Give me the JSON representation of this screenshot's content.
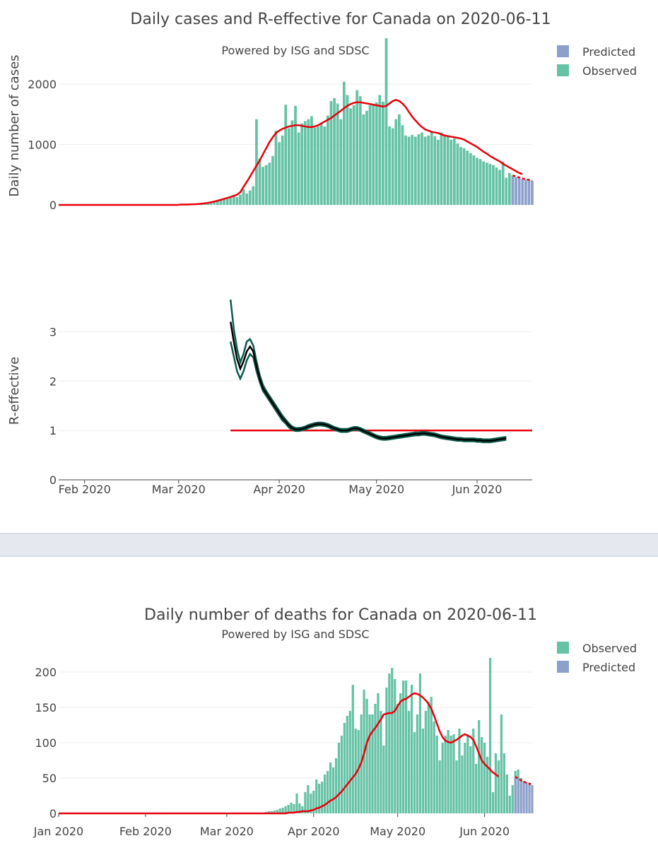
{
  "colors": {
    "observed": "#66c2a5",
    "predicted": "#8da0cb",
    "smooth": "#e8000b",
    "r_band": "#0a5b4c",
    "r_median": "#000000",
    "grid": "#eeeeee",
    "separator": "#e5e8ee"
  },
  "chart_data": [
    {
      "id": "cases",
      "type": "bar",
      "title": "Daily cases and R-effective for Canada on 2020-06-11",
      "subtitle": "Powered by ISG and SDSC",
      "ylabel": "Daily number of cases",
      "ylim": [
        0,
        2750
      ],
      "yticks": [
        0,
        1000,
        2000
      ],
      "x_start": "2020-01-24",
      "x_end": "2020-06-18",
      "x_ticks": [
        {
          "label": "Feb 2020",
          "date": "2020-02-01"
        },
        {
          "label": "Mar 2020",
          "date": "2020-03-01"
        },
        {
          "label": "Apr 2020",
          "date": "2020-04-01"
        },
        {
          "label": "May 2020",
          "date": "2020-05-01"
        },
        {
          "label": "Jun 2020",
          "date": "2020-06-01"
        }
      ],
      "legend": [
        {
          "label": "Predicted",
          "series": "predicted"
        },
        {
          "label": "Observed",
          "series": "observed"
        }
      ],
      "observed": {
        "start": "2020-03-01",
        "values": [
          5,
          10,
          12,
          15,
          18,
          20,
          25,
          30,
          35,
          45,
          55,
          70,
          80,
          95,
          110,
          120,
          140,
          150,
          130,
          170,
          260,
          190,
          240,
          310,
          1420,
          770,
          630,
          660,
          700,
          810,
          1230,
          1040,
          1150,
          1660,
          1270,
          1400,
          1640,
          1200,
          1350,
          1390,
          1420,
          1470,
          1280,
          1300,
          1360,
          1300,
          1480,
          1720,
          1770,
          1680,
          1420,
          2040,
          1820,
          1600,
          1650,
          1900,
          1800,
          1500,
          1560,
          1650,
          1650,
          1700,
          1820,
          1710,
          2760,
          1300,
          1270,
          1420,
          1500,
          1320,
          1150,
          1130,
          1160,
          1130,
          1170,
          1200,
          1130,
          1150,
          1200,
          1140,
          1080,
          1200,
          1160,
          1130,
          1080,
          1100,
          1020,
          960,
          940,
          900,
          860,
          820,
          780,
          760,
          720,
          700,
          680,
          660,
          620,
          580,
          720,
          450,
          530,
          490
        ]
      },
      "predicted": {
        "start": "2020-06-12",
        "values": [
          480,
          460,
          440,
          430,
          420,
          410,
          400
        ]
      },
      "smooth_observed": {
        "start": "2020-03-01",
        "values": [
          5,
          6,
          7,
          8,
          10,
          12,
          15,
          20,
          26,
          34,
          44,
          56,
          70,
          85,
          100,
          116,
          132,
          150,
          170,
          210,
          300,
          380,
          470,
          560,
          650,
          740,
          840,
          940,
          1040,
          1120,
          1190,
          1230,
          1260,
          1280,
          1300,
          1310,
          1320,
          1320,
          1310,
          1300,
          1290,
          1290,
          1300,
          1320,
          1350,
          1380,
          1410,
          1440,
          1480,
          1520,
          1560,
          1600,
          1640,
          1670,
          1690,
          1700,
          1700,
          1690,
          1680,
          1670,
          1660,
          1650,
          1640,
          1630,
          1640,
          1680,
          1720,
          1740,
          1720,
          1680,
          1620,
          1540,
          1460,
          1400,
          1340,
          1290,
          1250,
          1230,
          1210,
          1200,
          1190,
          1170,
          1150,
          1140,
          1130,
          1120,
          1110,
          1100,
          1080,
          1050,
          1020,
          990,
          960,
          920,
          880,
          850,
          810,
          780,
          750,
          720,
          680,
          650,
          620,
          590,
          560,
          530,
          510
        ]
      },
      "smooth_predicted": {
        "start": "2020-06-12",
        "values": [
          490,
          470,
          455,
          440,
          425,
          415,
          405
        ]
      }
    },
    {
      "id": "r_effective",
      "type": "line",
      "ylabel": "R-effective",
      "ylim": [
        0,
        3.65
      ],
      "yticks": [
        0,
        1,
        2,
        3
      ],
      "x_start": "2020-01-24",
      "x_end": "2020-06-18",
      "x_ticks": [
        {
          "label": "Feb 2020",
          "date": "2020-02-01"
        },
        {
          "label": "Mar 2020",
          "date": "2020-03-01"
        },
        {
          "label": "Apr 2020",
          "date": "2020-04-01"
        },
        {
          "label": "May 2020",
          "date": "2020-05-01"
        },
        {
          "label": "Jun 2020",
          "date": "2020-06-01"
        }
      ],
      "start": "2020-03-17",
      "median": [
        3.2,
        2.8,
        2.45,
        2.25,
        2.4,
        2.6,
        2.7,
        2.6,
        2.3,
        2.05,
        1.85,
        1.75,
        1.65,
        1.55,
        1.45,
        1.35,
        1.25,
        1.18,
        1.1,
        1.05,
        1.02,
        1.02,
        1.03,
        1.05,
        1.08,
        1.1,
        1.12,
        1.13,
        1.13,
        1.12,
        1.1,
        1.07,
        1.04,
        1.02,
        1.0,
        1.0,
        1.0,
        1.02,
        1.04,
        1.04,
        1.02,
        0.99,
        0.96,
        0.93,
        0.9,
        0.87,
        0.85,
        0.84,
        0.84,
        0.85,
        0.86,
        0.87,
        0.88,
        0.89,
        0.9,
        0.91,
        0.92,
        0.93,
        0.93,
        0.94,
        0.94,
        0.93,
        0.92,
        0.91,
        0.89,
        0.87,
        0.86,
        0.85,
        0.84,
        0.83,
        0.82,
        0.82,
        0.81,
        0.81,
        0.81,
        0.81,
        0.8,
        0.8,
        0.79,
        0.79,
        0.79,
        0.8,
        0.81,
        0.82,
        0.83,
        0.84
      ],
      "upper": [
        3.65,
        3.05,
        2.65,
        2.38,
        2.55,
        2.8,
        2.85,
        2.72,
        2.4,
        2.12,
        1.92,
        1.8,
        1.7,
        1.6,
        1.5,
        1.4,
        1.3,
        1.22,
        1.14,
        1.08,
        1.05,
        1.05,
        1.06,
        1.08,
        1.11,
        1.13,
        1.15,
        1.16,
        1.16,
        1.15,
        1.13,
        1.1,
        1.07,
        1.05,
        1.03,
        1.03,
        1.03,
        1.05,
        1.07,
        1.07,
        1.05,
        1.02,
        0.99,
        0.96,
        0.93,
        0.9,
        0.88,
        0.87,
        0.87,
        0.88,
        0.89,
        0.9,
        0.91,
        0.92,
        0.93,
        0.94,
        0.95,
        0.96,
        0.96,
        0.97,
        0.97,
        0.96,
        0.95,
        0.94,
        0.92,
        0.9,
        0.89,
        0.88,
        0.87,
        0.86,
        0.85,
        0.85,
        0.84,
        0.84,
        0.84,
        0.84,
        0.83,
        0.83,
        0.82,
        0.82,
        0.82,
        0.83,
        0.84,
        0.85,
        0.86,
        0.87
      ],
      "lower": [
        2.8,
        2.5,
        2.2,
        2.05,
        2.2,
        2.42,
        2.55,
        2.48,
        2.2,
        1.98,
        1.8,
        1.7,
        1.6,
        1.5,
        1.4,
        1.3,
        1.2,
        1.14,
        1.06,
        1.01,
        0.99,
        0.99,
        1.0,
        1.02,
        1.05,
        1.07,
        1.09,
        1.1,
        1.1,
        1.09,
        1.07,
        1.04,
        1.01,
        0.99,
        0.97,
        0.97,
        0.97,
        0.99,
        1.01,
        1.01,
        0.99,
        0.96,
        0.93,
        0.9,
        0.87,
        0.84,
        0.82,
        0.81,
        0.81,
        0.82,
        0.83,
        0.84,
        0.85,
        0.86,
        0.87,
        0.88,
        0.89,
        0.9,
        0.9,
        0.91,
        0.91,
        0.9,
        0.89,
        0.88,
        0.86,
        0.84,
        0.83,
        0.82,
        0.81,
        0.8,
        0.79,
        0.79,
        0.78,
        0.78,
        0.78,
        0.78,
        0.77,
        0.77,
        0.76,
        0.76,
        0.76,
        0.77,
        0.78,
        0.79,
        0.8,
        0.81
      ],
      "reference_line": {
        "value": 1,
        "start": "2020-03-17",
        "end": "2020-06-18"
      }
    },
    {
      "id": "deaths",
      "type": "bar",
      "title": "Daily number of deaths for Canada on 2020-06-11",
      "subtitle": "Powered by ISG and SDSC",
      "ylim": [
        0,
        230
      ],
      "yticks": [
        0,
        50,
        100,
        150,
        200
      ],
      "x_start": "2020-01-01",
      "x_end": "2020-06-18",
      "x_ticks": [
        {
          "label": "Jan 2020",
          "date": "2020-01-01"
        },
        {
          "label": "Feb 2020",
          "date": "2020-02-01"
        },
        {
          "label": "Mar 2020",
          "date": "2020-03-01"
        },
        {
          "label": "Apr 2020",
          "date": "2020-04-01"
        },
        {
          "label": "May 2020",
          "date": "2020-05-01"
        },
        {
          "label": "Jun 2020",
          "date": "2020-06-01"
        }
      ],
      "legend": [
        {
          "label": "Observed",
          "series": "observed"
        },
        {
          "label": "Predicted",
          "series": "predicted"
        }
      ],
      "observed": {
        "start": "2020-03-09",
        "values": [
          1,
          0,
          1,
          1,
          1,
          1,
          2,
          3,
          3,
          4,
          5,
          7,
          8,
          10,
          12,
          15,
          13,
          28,
          14,
          10,
          30,
          40,
          28,
          32,
          48,
          42,
          45,
          55,
          60,
          72,
          65,
          78,
          100,
          110,
          128,
          138,
          145,
          182,
          120,
          118,
          140,
          175,
          162,
          140,
          140,
          155,
          170,
          145,
          96,
          178,
          198,
          206,
          190,
          155,
          170,
          188,
          188,
          145,
          182,
          115,
          140,
          198,
          120,
          145,
          158,
          165,
          130,
          110,
          75,
          100,
          110,
          118,
          110,
          112,
          75,
          120,
          82,
          100,
          112,
          95,
          120,
          70,
          132,
          108,
          100,
          80,
          220,
          30,
          85,
          75,
          140,
          85,
          55,
          25,
          40,
          60,
          62,
          50
        ]
      },
      "predicted": {
        "start": "2020-06-12",
        "values": [
          52,
          50,
          48,
          46,
          44,
          42,
          40
        ]
      },
      "smooth_observed": {
        "start": "2020-03-01",
        "values": [
          0,
          0,
          0,
          0,
          0,
          0,
          0,
          0,
          0,
          0,
          0,
          0,
          0,
          0,
          0,
          0,
          0,
          0,
          0,
          0,
          0,
          0,
          1,
          1,
          1,
          2,
          2,
          3,
          3,
          3,
          4,
          5,
          7,
          8,
          10,
          12,
          15,
          18,
          20,
          23,
          27,
          31,
          36,
          41,
          46,
          51,
          56,
          63,
          72,
          85,
          100,
          110,
          116,
          121,
          127,
          133,
          140,
          141,
          142,
          142,
          145,
          152,
          158,
          161,
          162,
          165,
          168,
          170,
          169,
          167,
          164,
          160,
          155,
          148,
          138,
          127,
          116,
          108,
          103,
          101,
          100,
          102,
          104,
          107,
          110,
          112,
          110,
          108,
          104,
          95,
          85,
          75,
          70,
          66,
          62,
          58,
          55,
          52
        ]
      },
      "smooth_predicted": {
        "start": "2020-06-12",
        "values": [
          52,
          49,
          47,
          45,
          43,
          42,
          41
        ]
      }
    }
  ]
}
